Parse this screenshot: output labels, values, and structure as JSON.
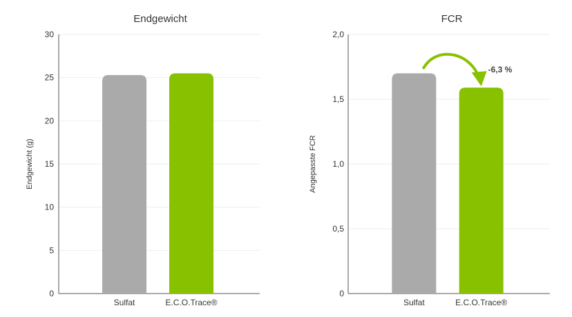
{
  "chart_data": [
    {
      "type": "bar",
      "title": "Endgewicht",
      "ylabel": "Endgewicht (g)",
      "xlabel": "",
      "categories": [
        "Sulfat",
        "E.C.O.Trace®"
      ],
      "values": [
        25.3,
        25.5
      ],
      "ylim": [
        0,
        30
      ],
      "yticks": [
        0,
        5,
        10,
        15,
        20,
        25,
        30
      ],
      "ytick_labels": [
        "0",
        "5",
        "10",
        "15",
        "20",
        "25",
        "30"
      ],
      "colors": [
        "#aaaaaa",
        "#88c100"
      ],
      "grid": true
    },
    {
      "type": "bar",
      "title": "FCR",
      "ylabel": "Angepasste FCR",
      "xlabel": "",
      "categories": [
        "Sulfat",
        "E.C.O.Trace®"
      ],
      "values": [
        1.7,
        1.59
      ],
      "ylim": [
        0,
        2.0
      ],
      "yticks": [
        0,
        0.5,
        1.0,
        1.5,
        2.0
      ],
      "ytick_labels": [
        "0",
        "0,5",
        "1,0",
        "1,5",
        "2,0"
      ],
      "colors": [
        "#aaaaaa",
        "#88c100"
      ],
      "grid": true,
      "annotation": {
        "text": "-6,3 %",
        "color": "#88c100"
      }
    }
  ]
}
